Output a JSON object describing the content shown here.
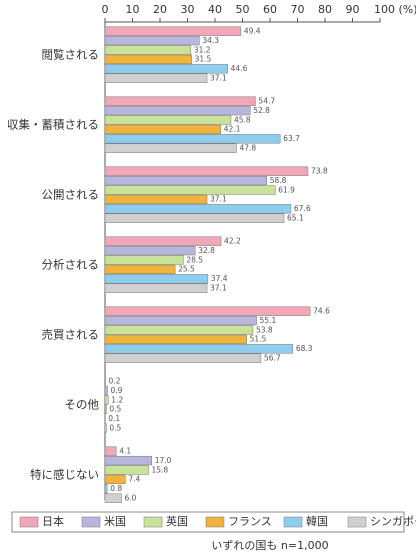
{
  "chart_data": {
    "type": "hbar",
    "categories": [
      "閲覧される",
      "収集・蓄積される",
      "公開される",
      "分析される",
      "売買される",
      "その他",
      "特に感じない"
    ],
    "series": [
      {
        "name": "日本",
        "color": "#f2a7b8",
        "values": [
          49.4,
          54.7,
          73.8,
          42.2,
          74.6,
          0.2,
          4.1
        ],
        "value_labels": [
          "49.4",
          "54.7",
          "73.8",
          "42.2",
          "74.6",
          "0.2",
          "4.1"
        ]
      },
      {
        "name": "米国",
        "color": "#b9b6dd",
        "values": [
          34.3,
          52.8,
          58.8,
          32.8,
          55.1,
          0.9,
          17.0
        ],
        "value_labels": [
          "34.3",
          "52.8",
          "58.8",
          "32.8",
          "55.1",
          "0.9",
          "17.0"
        ]
      },
      {
        "name": "英国",
        "color": "#c9e29a",
        "values": [
          31.2,
          45.8,
          61.9,
          28.5,
          53.8,
          1.2,
          15.8
        ],
        "value_labels": [
          "31.2",
          "45.8",
          "61.9",
          "28.5",
          "53.8",
          "1.2",
          "15.8"
        ]
      },
      {
        "name": "フランス",
        "color": "#f0b43c",
        "values": [
          31.5,
          42.1,
          37.1,
          25.5,
          51.5,
          0.5,
          7.4
        ],
        "value_labels": [
          "31.5",
          "42.1",
          "37.1",
          "25.5",
          "51.5",
          "0.5",
          "7.4"
        ]
      },
      {
        "name": "韓国",
        "color": "#8fcdef",
        "values": [
          44.6,
          63.7,
          67.6,
          37.4,
          68.3,
          0.1,
          0.8
        ],
        "value_labels": [
          "44.6",
          "63.7",
          "67.6",
          "37.4",
          "68.3",
          "0.1",
          "0.8"
        ]
      },
      {
        "name": "シンガポール",
        "color": "#d0d0d0",
        "values": [
          37.1,
          47.8,
          65.1,
          37.1,
          56.7,
          0.5,
          6.0
        ],
        "value_labels": [
          "37.1",
          "47.8",
          "65.1",
          "37.1",
          "56.7",
          "0.5",
          "6.0"
        ]
      }
    ],
    "xlim": [
      0,
      100
    ],
    "xticks": [
      0,
      10,
      20,
      30,
      40,
      50,
      60,
      70,
      80,
      90,
      {
        "value": 100,
        "label": "100 (%)"
      }
    ],
    "grid": false,
    "legend": "bottom",
    "note": "いずれの国も n=1,000"
  }
}
